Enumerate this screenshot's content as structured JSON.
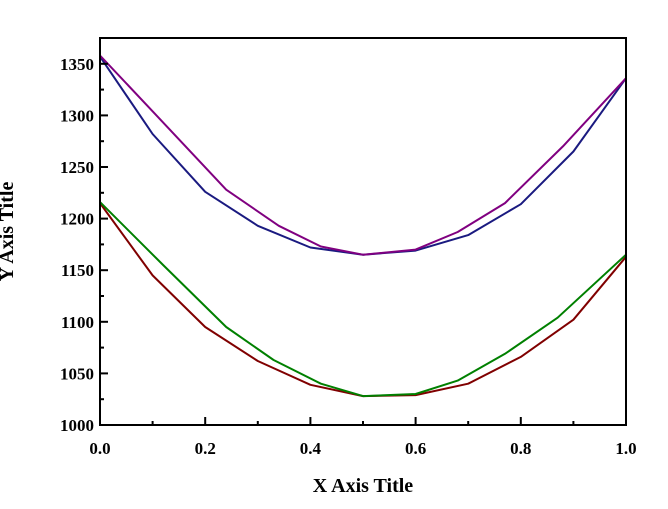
{
  "chart_data": {
    "type": "line",
    "xlabel": "X Axis Title",
    "ylabel": "Y Axis Title",
    "xlim": [
      0,
      1
    ],
    "ylim": [
      1000,
      1375
    ],
    "x_ticks": [
      0.0,
      0.2,
      0.4,
      0.6,
      0.8,
      1.0
    ],
    "x_tick_labels": [
      "0.0",
      "0.2",
      "0.4",
      "0.6",
      "0.8",
      "1.0"
    ],
    "y_ticks": [
      1000,
      1050,
      1100,
      1150,
      1200,
      1250,
      1300,
      1350
    ],
    "y_tick_labels": [
      "1000",
      "1050",
      "1100",
      "1150",
      "1200",
      "1250",
      "1300",
      "1350"
    ],
    "grid": false,
    "series": [
      {
        "color": "#1a1a80",
        "x": [
          0.0,
          0.1,
          0.2,
          0.3,
          0.4,
          0.5,
          0.6,
          0.7,
          0.8,
          0.9,
          1.0
        ],
        "values": [
          1357,
          1282,
          1226,
          1193,
          1172,
          1165,
          1169,
          1184,
          1214,
          1265,
          1336
        ]
      },
      {
        "color": "#800080",
        "x": [
          0.0,
          0.1,
          0.24,
          0.34,
          0.42,
          0.5,
          0.6,
          0.68,
          0.77,
          0.88,
          1.0
        ],
        "values": [
          1358,
          1304,
          1228,
          1193,
          1173,
          1165,
          1170,
          1187,
          1215,
          1270,
          1336
        ]
      },
      {
        "color": "#800000",
        "x": [
          0.0,
          0.1,
          0.2,
          0.3,
          0.4,
          0.5,
          0.6,
          0.7,
          0.8,
          0.9,
          1.0
        ],
        "values": [
          1215,
          1145,
          1095,
          1062,
          1039,
          1028,
          1029,
          1040,
          1066,
          1102,
          1163
        ]
      },
      {
        "color": "#008000",
        "x": [
          0.0,
          0.12,
          0.24,
          0.33,
          0.42,
          0.5,
          0.6,
          0.68,
          0.77,
          0.87,
          1.0
        ],
        "values": [
          1216,
          1155,
          1095,
          1063,
          1040,
          1028,
          1030,
          1043,
          1069,
          1104,
          1165
        ]
      }
    ]
  }
}
